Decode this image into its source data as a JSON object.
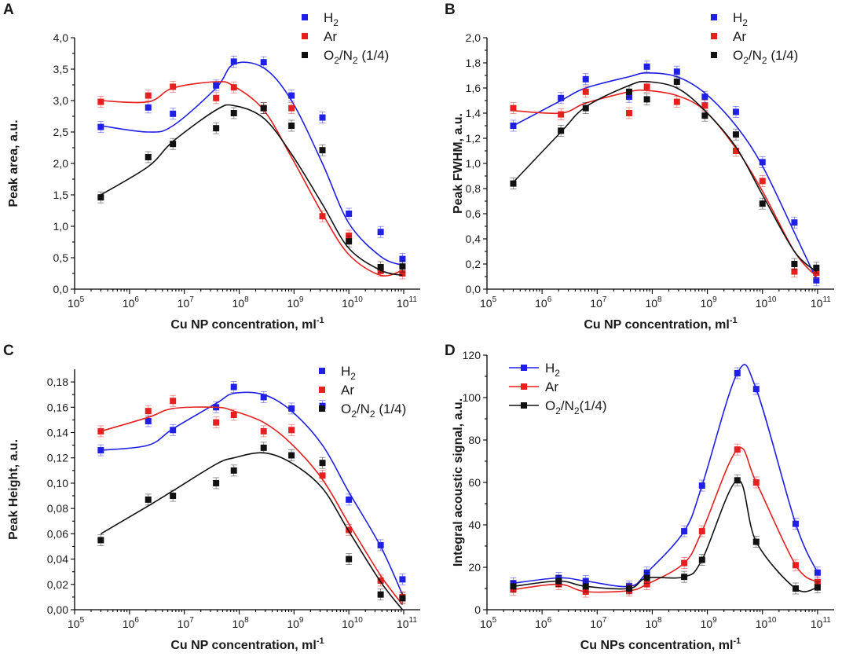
{
  "chart_data": [
    {
      "panel": "A",
      "type": "scatter",
      "xscale": "log",
      "xlabel": "Cu NP concentration, ml",
      "xlabel_sup": "-1",
      "ylabel": "Peak area, a.u.",
      "xlim": [
        100000,
        200000000000
      ],
      "ylim": [
        0,
        4.0
      ],
      "yticks": [
        0,
        0.5,
        1.0,
        1.5,
        2.0,
        2.5,
        3.0,
        3.5,
        4.0
      ],
      "yticklabels": [
        "0,0",
        "0,5",
        "1,0",
        "1,5",
        "2,0",
        "2,5",
        "3,0",
        "3,5",
        "4,0"
      ],
      "legend_position": "top-center",
      "series": [
        {
          "name": "H2",
          "label": "H",
          "sub": "2",
          "tail": "",
          "color": "#1f1fe6",
          "line": "fit",
          "x": [
            300000,
            2200000,
            6200000,
            38000000,
            80000000,
            280000000,
            900000000,
            3300000000,
            10000000000,
            38000000000,
            95000000000
          ],
          "y": [
            2.58,
            2.89,
            2.79,
            3.24,
            3.62,
            3.61,
            3.08,
            2.73,
            1.2,
            0.91,
            0.48
          ],
          "fit_y": [
            2.6,
            2.5,
            2.6,
            3.2,
            3.58,
            3.52,
            3.0,
            2.0,
            1.05,
            0.52,
            0.38
          ]
        },
        {
          "name": "Ar",
          "label": "Ar",
          "sub": "",
          "tail": "",
          "color": "#e61f1f",
          "line": "fit",
          "x": [
            300000,
            2200000,
            6200000,
            38000000,
            80000000,
            280000000,
            900000000,
            3300000000,
            10000000000,
            38000000000,
            95000000000
          ],
          "y": [
            2.98,
            3.08,
            3.22,
            3.04,
            3.21,
            2.88,
            2.88,
            1.16,
            0.85,
            0.29,
            0.25
          ],
          "fit_y": [
            3.0,
            2.98,
            3.2,
            3.3,
            3.23,
            2.85,
            2.1,
            1.2,
            0.55,
            0.22,
            0.3
          ]
        },
        {
          "name": "O2/N2 (1/4)",
          "label": "O",
          "sub": "2",
          "tail": "/N",
          "sub2": "2",
          "tail2": " (1/4)",
          "color": "#111111",
          "line": "fit",
          "x": [
            300000,
            2200000,
            6200000,
            38000000,
            80000000,
            280000000,
            900000000,
            3300000000,
            10000000000,
            38000000000,
            95000000000
          ],
          "y": [
            1.46,
            2.1,
            2.31,
            2.56,
            2.8,
            2.88,
            2.6,
            2.21,
            0.76,
            0.35,
            0.36
          ],
          "fit_y": [
            1.5,
            1.95,
            2.35,
            2.85,
            2.92,
            2.72,
            2.15,
            1.35,
            0.65,
            0.3,
            0.22
          ]
        }
      ]
    },
    {
      "panel": "B",
      "type": "scatter",
      "xscale": "log",
      "xlabel": "Cu NP concentration, ml",
      "xlabel_sup": "-1",
      "ylabel": "Peak FWHM, a.u.",
      "xlim": [
        100000,
        200000000000
      ],
      "ylim": [
        0,
        2.0
      ],
      "yticks": [
        0,
        0.2,
        0.4,
        0.6,
        0.8,
        1.0,
        1.2,
        1.4,
        1.6,
        1.8,
        2.0
      ],
      "yticklabels": [
        "0,0",
        "0,2",
        "0,4",
        "0,6",
        "0,8",
        "1,0",
        "1,2",
        "1,4",
        "1,6",
        "1,8",
        "2,0"
      ],
      "legend_position": "top-center",
      "series": [
        {
          "name": "H2",
          "label": "H",
          "sub": "2",
          "tail": "",
          "color": "#1f1fe6",
          "line": "fit",
          "x": [
            300000,
            2200000,
            6200000,
            38000000,
            80000000,
            280000000,
            900000000,
            3300000000,
            10000000000,
            38000000000,
            95000000000
          ],
          "y": [
            1.3,
            1.52,
            1.67,
            1.53,
            1.77,
            1.73,
            1.53,
            1.41,
            1.01,
            0.53,
            0.07
          ],
          "fit_y": [
            1.3,
            1.5,
            1.6,
            1.69,
            1.72,
            1.69,
            1.56,
            1.3,
            0.98,
            0.45,
            0.08
          ]
        },
        {
          "name": "Ar",
          "label": "Ar",
          "sub": "",
          "tail": "",
          "color": "#e61f1f",
          "line": "fit",
          "x": [
            300000,
            2200000,
            6200000,
            38000000,
            80000000,
            280000000,
            900000000,
            3300000000,
            10000000000,
            38000000000,
            95000000000
          ],
          "y": [
            1.44,
            1.39,
            1.57,
            1.4,
            1.61,
            1.49,
            1.46,
            1.1,
            0.86,
            0.14,
            0.13
          ],
          "fit_y": [
            1.42,
            1.4,
            1.48,
            1.57,
            1.58,
            1.54,
            1.42,
            1.12,
            0.78,
            0.3,
            0.1
          ]
        },
        {
          "name": "O2/N2 (1/4)",
          "label": "O",
          "sub": "2",
          "tail": "/N",
          "sub2": "2",
          "tail2": " (1/4)",
          "color": "#111111",
          "line": "fit",
          "x": [
            300000,
            2200000,
            6200000,
            38000000,
            80000000,
            280000000,
            900000000,
            3300000000,
            10000000000,
            38000000000,
            95000000000
          ],
          "y": [
            0.84,
            1.26,
            1.44,
            1.57,
            1.51,
            1.65,
            1.38,
            1.23,
            0.68,
            0.2,
            0.17
          ],
          "fit_y": [
            0.85,
            1.25,
            1.45,
            1.62,
            1.65,
            1.6,
            1.42,
            1.13,
            0.75,
            0.3,
            0.14
          ]
        }
      ]
    },
    {
      "panel": "C",
      "type": "scatter",
      "xscale": "log",
      "xlabel": "Cu NP concentration, ml",
      "xlabel_sup": "-1",
      "ylabel": "Peak Height, a.u.",
      "xlim": [
        100000,
        200000000000
      ],
      "ylim": [
        0,
        0.19
      ],
      "yticks": [
        0,
        0.02,
        0.04,
        0.06,
        0.08,
        0.1,
        0.12,
        0.14,
        0.16,
        0.18
      ],
      "yticklabels": [
        "0,00",
        "0,02",
        "0,04",
        "0,06",
        "0,08",
        "0,10",
        "0,12",
        "0,14",
        "0,16",
        "0,18"
      ],
      "legend_position": "top-right",
      "series": [
        {
          "name": "H2",
          "label": "H",
          "sub": "2",
          "tail": "",
          "color": "#1f1fe6",
          "line": "fit",
          "x": [
            300000,
            2200000,
            6200000,
            38000000,
            80000000,
            280000000,
            900000000,
            3300000000,
            10000000000,
            38000000000,
            95000000000
          ],
          "y": [
            0.126,
            0.149,
            0.142,
            0.16,
            0.176,
            0.168,
            0.159,
            0.161,
            0.087,
            0.051,
            0.024
          ],
          "fit_y": [
            0.126,
            0.13,
            0.143,
            0.163,
            0.171,
            0.17,
            0.157,
            0.13,
            0.093,
            0.05,
            0.012
          ]
        },
        {
          "name": "Ar",
          "label": "Ar",
          "sub": "",
          "tail": "",
          "color": "#e61f1f",
          "line": "fit",
          "x": [
            300000,
            2200000,
            6200000,
            38000000,
            80000000,
            280000000,
            900000000,
            3300000000,
            10000000000,
            38000000000,
            95000000000
          ],
          "y": [
            0.141,
            0.157,
            0.165,
            0.148,
            0.154,
            0.141,
            0.142,
            0.106,
            0.063,
            0.023,
            0.01
          ],
          "fit_y": [
            0.141,
            0.152,
            0.159,
            0.16,
            0.157,
            0.148,
            0.131,
            0.103,
            0.068,
            0.027,
            0.004
          ]
        },
        {
          "name": "O2/N2 (1/4)",
          "label": "O",
          "sub": "2",
          "tail": "/N",
          "sub2": "2",
          "tail2": " (1/4)",
          "color": "#111111",
          "line": "fit",
          "x": [
            300000,
            2200000,
            6200000,
            38000000,
            80000000,
            280000000,
            900000000,
            3300000000,
            10000000000,
            38000000000,
            95000000000
          ],
          "y": [
            0.055,
            0.087,
            0.09,
            0.1,
            0.11,
            0.128,
            0.122,
            0.116,
            0.04,
            0.012,
            0.009
          ],
          "fit_y": [
            0.06,
            0.082,
            0.094,
            0.115,
            0.12,
            0.124,
            0.116,
            0.096,
            0.062,
            0.022,
            0.0
          ]
        }
      ]
    },
    {
      "panel": "D",
      "type": "line",
      "xscale": "log",
      "xlabel": "Cu NPs concentration, ml",
      "xlabel_sup": "-1",
      "ylabel": "Integral acoustic signal, a.u.",
      "xlim": [
        100000,
        200000000000
      ],
      "ylim": [
        0,
        120
      ],
      "yticks": [
        0,
        20,
        40,
        60,
        80,
        100,
        120
      ],
      "yticklabels": [
        "0",
        "20",
        "40",
        "60",
        "80",
        "100",
        "120"
      ],
      "legend_position": "top-left",
      "series": [
        {
          "name": "H2",
          "label": "H",
          "sub": "2",
          "tail": "",
          "color": "#1f1fe6",
          "line": "connect",
          "x": [
            300000,
            2000000,
            6200000,
            38000000,
            80000000,
            380000000,
            800000000,
            3500000000,
            7700000000,
            40000000000,
            100000000000
          ],
          "y": [
            12.5,
            15,
            13.5,
            11,
            17.5,
            37,
            58.5,
            111.5,
            104,
            40.5,
            17.5
          ]
        },
        {
          "name": "Ar",
          "label": "Ar",
          "sub": "",
          "tail": "",
          "color": "#e61f1f",
          "line": "connect",
          "x": [
            300000,
            2000000,
            6200000,
            38000000,
            80000000,
            380000000,
            800000000,
            3500000000,
            7700000000,
            40000000000,
            100000000000
          ],
          "y": [
            9.5,
            12,
            8.5,
            9,
            12,
            22,
            37,
            75.5,
            60,
            21,
            13
          ]
        },
        {
          "name": "O2/N2(1/4)",
          "label": "O",
          "sub": "2",
          "tail": "/N",
          "sub2": "2",
          "tail2": "(1/4)",
          "color": "#111111",
          "line": "connect",
          "x": [
            300000,
            2000000,
            6200000,
            38000000,
            80000000,
            380000000,
            800000000,
            3500000000,
            7700000000,
            40000000000,
            100000000000
          ],
          "y": [
            11,
            13.5,
            11,
            10,
            15,
            15.5,
            23.5,
            61,
            32,
            10,
            10.5
          ]
        }
      ]
    }
  ]
}
